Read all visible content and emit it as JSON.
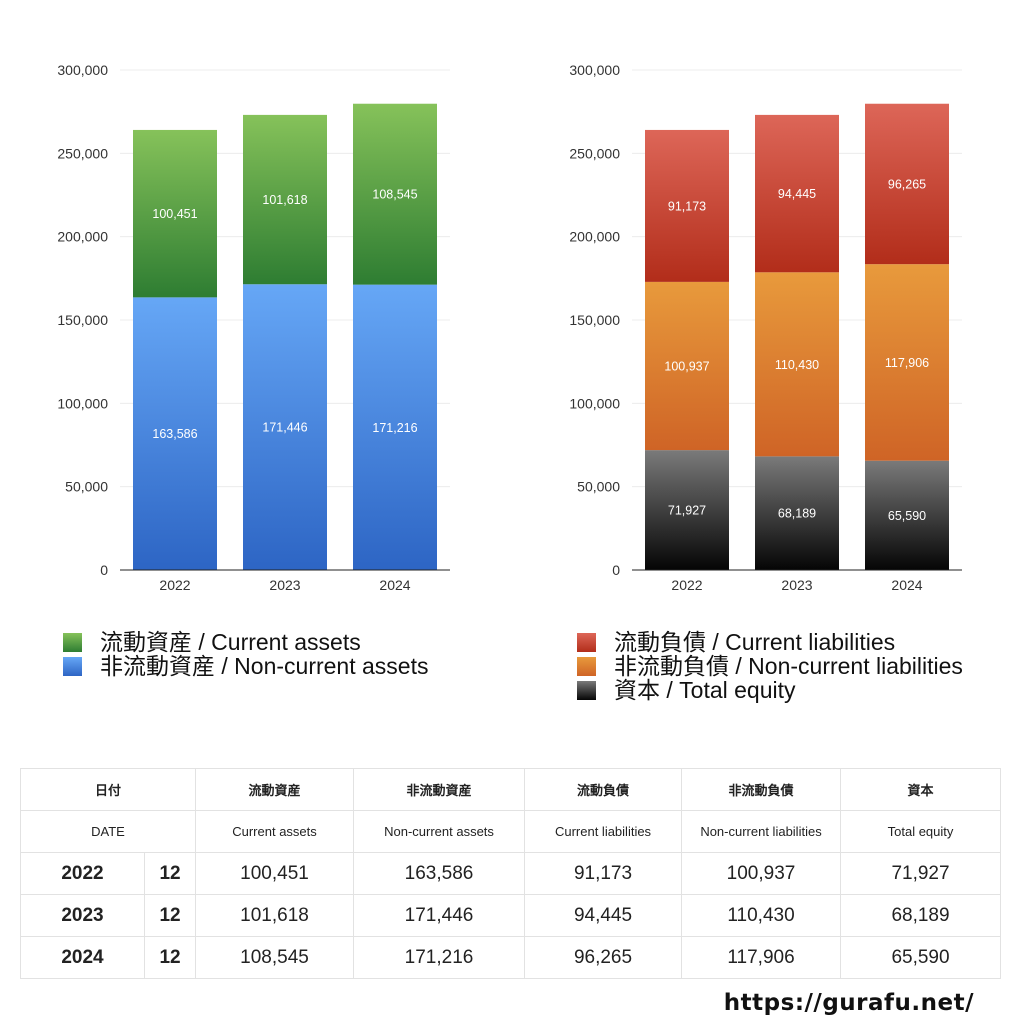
{
  "chart_data": [
    {
      "type": "bar",
      "stacked": true,
      "categories": [
        "2022",
        "2023",
        "2024"
      ],
      "ylim": [
        0,
        300000
      ],
      "yticks": [
        "0",
        "50,000",
        "100,000",
        "150,000",
        "200,000",
        "250,000",
        "300,000"
      ],
      "ytick_values": [
        0,
        50000,
        100000,
        150000,
        200000,
        250000,
        300000
      ],
      "grid": true,
      "legend_position": "bottom",
      "series": [
        {
          "name": "非流動資産 / Non-current assets",
          "values": [
            163586,
            171446,
            171216
          ],
          "labels": [
            "163,586",
            "171,446",
            "171,216"
          ],
          "color_top": "#66a7f6",
          "color_bottom": "#2d65c4"
        },
        {
          "name": "流動資産 / Current assets",
          "values": [
            100451,
            101618,
            108545
          ],
          "labels": [
            "100,451",
            "101,618",
            "108,545"
          ],
          "color_top": "#86c25a",
          "color_bottom": "#2e7d32"
        }
      ]
    },
    {
      "type": "bar",
      "stacked": true,
      "categories": [
        "2022",
        "2023",
        "2024"
      ],
      "ylim": [
        0,
        300000
      ],
      "yticks": [
        "0",
        "50,000",
        "100,000",
        "150,000",
        "200,000",
        "250,000",
        "300,000"
      ],
      "ytick_values": [
        0,
        50000,
        100000,
        150000,
        200000,
        250000,
        300000
      ],
      "grid": true,
      "legend_position": "bottom",
      "series": [
        {
          "name": "資本 / Total equity",
          "values": [
            71927,
            68189,
            65590
          ],
          "labels": [
            "71,927",
            "68,189",
            "65,590"
          ],
          "color_top": "#7a7a7a",
          "color_bottom": "#050505"
        },
        {
          "name": "非流動負債 / Non-current liabilities",
          "values": [
            100937,
            110430,
            117906
          ],
          "labels": [
            "100,937",
            "110,430",
            "117,906"
          ],
          "color_top": "#e89a3c",
          "color_bottom": "#cf6426"
        },
        {
          "name": "流動負債 / Current liabilities",
          "values": [
            91173,
            94445,
            96265
          ],
          "labels": [
            "91,173",
            "94,445",
            "96,265"
          ],
          "color_top": "#dd6658",
          "color_bottom": "#b22d1a"
        }
      ]
    }
  ],
  "legend_left": [
    {
      "label": "流動資産 / Current assets",
      "color_top": "#86c25a",
      "color_bottom": "#2e7d32"
    },
    {
      "label": "非流動資産 / Non-current assets",
      "color_top": "#66a7f6",
      "color_bottom": "#2d65c4"
    }
  ],
  "legend_right": [
    {
      "label": "流動負債 / Current liabilities",
      "color_top": "#dd6658",
      "color_bottom": "#b22d1a"
    },
    {
      "label": "非流動負債 / Non-current liabilities",
      "color_top": "#e89a3c",
      "color_bottom": "#cf6426"
    },
    {
      "label": "資本 / Total equity",
      "color_top": "#7a7a7a",
      "color_bottom": "#050505"
    }
  ],
  "table": {
    "header_jp": [
      "日付",
      "流動資産",
      "非流動資産",
      "流動負債",
      "非流動負債",
      "資本"
    ],
    "header_en": [
      "DATE",
      "Current assets",
      "Non-current assets",
      "Current liabilities",
      "Non-current liabilities",
      "Total equity"
    ],
    "rows": [
      {
        "year": "2022",
        "month": "12",
        "cells": [
          "100,451",
          "163,586",
          "91,173",
          "100,937",
          "71,927"
        ]
      },
      {
        "year": "2023",
        "month": "12",
        "cells": [
          "101,618",
          "171,446",
          "94,445",
          "110,430",
          "68,189"
        ]
      },
      {
        "year": "2024",
        "month": "12",
        "cells": [
          "108,545",
          "171,216",
          "96,265",
          "117,906",
          "65,590"
        ]
      }
    ]
  },
  "footer": {
    "url": "https://gurafu.net/"
  }
}
